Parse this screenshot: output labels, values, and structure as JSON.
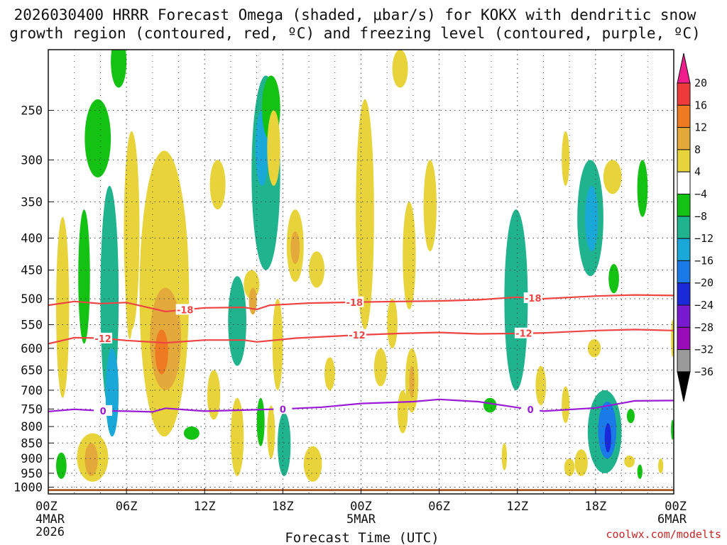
{
  "title": {
    "line1": "2026030400 HRRR Forecast Omega (shaded, μbar/s) for KOKX with dendritic snow",
    "line2": "growth region (contoured, red, ºC) and freezing level (contoured, purple, ºC)"
  },
  "credit": "coolwx.com/modelts",
  "chart_data": {
    "type": "heatmap",
    "title": "2026030400 HRRR Forecast Omega (shaded, μbar/s) for KOKX with dendritic snow growth region (contoured, red, ºC) and freezing level (contoured, purple, ºC)",
    "xlabel": "Forecast Time (UTC)",
    "ylabel": "",
    "x_range_hours": [
      0,
      48
    ],
    "x_ticks": [
      {
        "hour": 0,
        "label": "00Z",
        "sub1": "4MAR",
        "sub2": "2026"
      },
      {
        "hour": 6,
        "label": "06Z",
        "sub1": "",
        "sub2": ""
      },
      {
        "hour": 12,
        "label": "12Z",
        "sub1": "",
        "sub2": ""
      },
      {
        "hour": 18,
        "label": "18Z",
        "sub1": "",
        "sub2": ""
      },
      {
        "hour": 24,
        "label": "00Z",
        "sub1": "5MAR",
        "sub2": ""
      },
      {
        "hour": 30,
        "label": "06Z",
        "sub1": "",
        "sub2": ""
      },
      {
        "hour": 36,
        "label": "12Z",
        "sub1": "",
        "sub2": ""
      },
      {
        "hour": 42,
        "label": "18Z",
        "sub1": "",
        "sub2": ""
      },
      {
        "hour": 48,
        "label": "00Z",
        "sub1": "6MAR",
        "sub2": ""
      }
    ],
    "y_range_hpa": [
      200,
      1025
    ],
    "y_ticks": [
      250,
      300,
      350,
      400,
      450,
      500,
      550,
      600,
      650,
      700,
      750,
      800,
      850,
      900,
      950,
      1000
    ],
    "colorbar": {
      "levels": [
        20,
        16,
        12,
        8,
        4,
        -4,
        -8,
        -12,
        -16,
        -20,
        -24,
        -28,
        -32,
        -36
      ],
      "labels": [
        "20",
        "16",
        "12",
        "8",
        "4",
        "−4",
        "−8",
        "−12",
        "−16",
        "−20",
        "−24",
        "−28",
        "−32",
        "−36"
      ],
      "colors_top_to_bottom": [
        "#ee1c8c",
        "#ee3a3a",
        "#ee7a22",
        "#e3a93a",
        "#e8d43a",
        "#ffffff",
        "#13c213",
        "#1fb38e",
        "#1aa8d8",
        "#1a7ae8",
        "#1a2ad8",
        "#7a1ad0",
        "#9a0cb8",
        "#9a9a9a",
        "#000000"
      ]
    },
    "contours": [
      {
        "name": "dgz-top",
        "label": "-18",
        "color": "#ee4444",
        "points": [
          [
            0,
            512
          ],
          [
            2,
            505
          ],
          [
            4,
            509
          ],
          [
            6,
            507
          ],
          [
            9,
            524
          ],
          [
            12,
            517
          ],
          [
            15,
            516
          ],
          [
            16,
            520
          ],
          [
            17,
            512
          ],
          [
            20,
            508
          ],
          [
            24,
            506
          ],
          [
            27,
            505
          ],
          [
            30,
            504
          ],
          [
            33,
            502
          ],
          [
            36,
            497
          ],
          [
            38,
            500
          ],
          [
            42,
            495
          ],
          [
            45,
            493
          ],
          [
            48,
            494
          ]
        ],
        "label_hours": [
          10.5,
          23.5,
          37.2
        ]
      },
      {
        "name": "dgz-bottom",
        "label": "-12",
        "color": "#ee4444",
        "points": [
          [
            0,
            590
          ],
          [
            2,
            577
          ],
          [
            4,
            578
          ],
          [
            6,
            583
          ],
          [
            9,
            588
          ],
          [
            12,
            582
          ],
          [
            15,
            582
          ],
          [
            16,
            586
          ],
          [
            19,
            578
          ],
          [
            24,
            571
          ],
          [
            27,
            568
          ],
          [
            30,
            566
          ],
          [
            33,
            569
          ],
          [
            36,
            568
          ],
          [
            38,
            567
          ],
          [
            42,
            562
          ],
          [
            45,
            560
          ],
          [
            48,
            562
          ]
        ],
        "label_hours": [
          4.2,
          23.7,
          36.5
        ]
      },
      {
        "name": "freezing-level",
        "label": "0",
        "color": "#9a1ad6",
        "points": [
          [
            0,
            757
          ],
          [
            2,
            751
          ],
          [
            4,
            755
          ],
          [
            6,
            756
          ],
          [
            8,
            758
          ],
          [
            9,
            748
          ],
          [
            12,
            756
          ],
          [
            15,
            753
          ],
          [
            18,
            750
          ],
          [
            21,
            745
          ],
          [
            24,
            735
          ],
          [
            28,
            730
          ],
          [
            30,
            724
          ],
          [
            33,
            730
          ],
          [
            36,
            746
          ],
          [
            38,
            756
          ],
          [
            42,
            747
          ],
          [
            45,
            728
          ],
          [
            48,
            727
          ]
        ],
        "label_hours": [
          4.2,
          18.0,
          37.0
        ]
      }
    ],
    "shaded_regions": [
      {
        "name": "up-0-6",
        "v": 6,
        "hours": [
          0.6,
          1.6
        ],
        "p": [
          370,
          720
        ]
      },
      {
        "name": "dn-1",
        "v": -6,
        "hours": [
          2.3,
          3.2
        ],
        "p": [
          360,
          590
        ]
      },
      {
        "name": "dn-2",
        "v": -6,
        "hours": [
          2.8,
          4.8
        ],
        "p": [
          240,
          320
        ]
      },
      {
        "name": "dn-3",
        "v": -10,
        "hours": [
          4.0,
          5.4
        ],
        "p": [
          330,
          750
        ]
      },
      {
        "name": "dn-4",
        "v": -14,
        "hours": [
          4.4,
          5.4
        ],
        "p": [
          600,
          830
        ]
      },
      {
        "name": "up-0-6b",
        "v": 6,
        "hours": [
          2.2,
          4.6
        ],
        "p": [
          820,
          980
        ]
      },
      {
        "name": "up-0-12",
        "v": 10,
        "hours": [
          2.8,
          3.8
        ],
        "p": [
          850,
          960
        ]
      },
      {
        "name": "dn-5",
        "v": -6,
        "hours": [
          0.6,
          1.4
        ],
        "p": [
          880,
          970
        ]
      },
      {
        "name": "dn-6",
        "v": -6,
        "hours": [
          4.8,
          6.0
        ],
        "p": [
          190,
          230
        ]
      },
      {
        "name": "up-0-7",
        "v": 6,
        "hours": [
          5.9,
          6.6
        ],
        "p": [
          330,
          580
        ]
      },
      {
        "name": "up-1",
        "v": 6,
        "hours": [
          7.0,
          10.8
        ],
        "p": [
          290,
          830
        ]
      },
      {
        "name": "up-2",
        "v": 10,
        "hours": [
          7.8,
          10.2
        ],
        "p": [
          480,
          700
        ]
      },
      {
        "name": "up-3",
        "v": 14,
        "hours": [
          8.2,
          9.2
        ],
        "p": [
          560,
          660
        ]
      },
      {
        "name": "up-4",
        "v": 6,
        "hours": [
          5.8,
          7.0
        ],
        "p": [
          270,
          560
        ]
      },
      {
        "name": "dn-7",
        "v": -6,
        "hours": [
          10.4,
          11.6
        ],
        "p": [
          800,
          840
        ]
      },
      {
        "name": "up-5",
        "v": 6,
        "hours": [
          12.4,
          13.6
        ],
        "p": [
          300,
          360
        ]
      },
      {
        "name": "up-6",
        "v": 6,
        "hours": [
          12.2,
          13.2
        ],
        "p": [
          650,
          780
        ]
      },
      {
        "name": "dn-8",
        "v": -10,
        "hours": [
          13.8,
          15.2
        ],
        "p": [
          460,
          640
        ]
      },
      {
        "name": "up-7",
        "v": 6,
        "hours": [
          15.0,
          16.2
        ],
        "p": [
          450,
          500
        ]
      },
      {
        "name": "up-7b",
        "v": 10,
        "hours": [
          15.4,
          16.0
        ],
        "p": [
          480,
          530
        ]
      },
      {
        "name": "dn-9",
        "v": -8,
        "hours": [
          15.6,
          17.8
        ],
        "p": [
          220,
          450
        ]
      },
      {
        "name": "dn-10",
        "v": -14,
        "hours": [
          15.9,
          16.9
        ],
        "p": [
          250,
          330
        ]
      },
      {
        "name": "dn-11",
        "v": -6,
        "hours": [
          16.4,
          17.8
        ],
        "p": [
          220,
          280
        ]
      },
      {
        "name": "up-8",
        "v": 6,
        "hours": [
          16.8,
          17.8
        ],
        "p": [
          250,
          330
        ]
      },
      {
        "name": "up-9",
        "v": 6,
        "hours": [
          18.3,
          19.6
        ],
        "p": [
          360,
          470
        ]
      },
      {
        "name": "up-10",
        "v": 10,
        "hours": [
          18.6,
          19.3
        ],
        "p": [
          390,
          440
        ]
      },
      {
        "name": "up-11",
        "v": 6,
        "hours": [
          17.2,
          18.0
        ],
        "p": [
          500,
          700
        ]
      },
      {
        "name": "dn-12",
        "v": -10,
        "hours": [
          17.6,
          18.6
        ],
        "p": [
          760,
          960
        ]
      },
      {
        "name": "dn-13",
        "v": -6,
        "hours": [
          16.0,
          16.6
        ],
        "p": [
          720,
          860
        ]
      },
      {
        "name": "up-12",
        "v": 6,
        "hours": [
          16.8,
          17.4
        ],
        "p": [
          740,
          900
        ]
      },
      {
        "name": "up-13",
        "v": 6,
        "hours": [
          14.0,
          15.0
        ],
        "p": [
          720,
          960
        ]
      },
      {
        "name": "up-14",
        "v": 6,
        "hours": [
          19.6,
          21.0
        ],
        "p": [
          860,
          980
        ]
      },
      {
        "name": "up-15",
        "v": 6,
        "hours": [
          20.0,
          21.2
        ],
        "p": [
          420,
          480
        ]
      },
      {
        "name": "up-16",
        "v": 6,
        "hours": [
          21.2,
          22.0
        ],
        "p": [
          620,
          700
        ]
      },
      {
        "name": "up-17",
        "v": 6,
        "hours": [
          23.6,
          25.0
        ],
        "p": [
          240,
          560
        ]
      },
      {
        "name": "up-18",
        "v": 6,
        "hours": [
          26.0,
          26.8
        ],
        "p": [
          500,
          600
        ]
      },
      {
        "name": "up-19",
        "v": 6,
        "hours": [
          25.0,
          26.0
        ],
        "p": [
          600,
          690
        ]
      },
      {
        "name": "up-20",
        "v": 6,
        "hours": [
          27.2,
          28.2
        ],
        "p": [
          350,
          520
        ]
      },
      {
        "name": "up-21",
        "v": 6,
        "hours": [
          28.8,
          29.8
        ],
        "p": [
          300,
          420
        ]
      },
      {
        "name": "up-22",
        "v": 6,
        "hours": [
          26.8,
          27.6
        ],
        "p": [
          700,
          820
        ]
      },
      {
        "name": "up-23",
        "v": 6,
        "hours": [
          27.4,
          28.4
        ],
        "p": [
          600,
          760
        ]
      },
      {
        "name": "up-23b",
        "v": 10,
        "hours": [
          27.7,
          28.1
        ],
        "p": [
          640,
          720
        ]
      },
      {
        "name": "up-24",
        "v": 6,
        "hours": [
          26.4,
          27.6
        ],
        "p": [
          200,
          230
        ]
      },
      {
        "name": "up-25",
        "v": 6,
        "hours": [
          34.8,
          35.2
        ],
        "p": [
          850,
          940
        ]
      },
      {
        "name": "dn-14",
        "v": -8,
        "hours": [
          35.0,
          36.8
        ],
        "p": [
          360,
          700
        ]
      },
      {
        "name": "dn-15",
        "v": -6,
        "hours": [
          33.4,
          34.4
        ],
        "p": [
          720,
          760
        ]
      },
      {
        "name": "up-26",
        "v": 6,
        "hours": [
          37.4,
          38.2
        ],
        "p": [
          640,
          740
        ]
      },
      {
        "name": "up-27",
        "v": 6,
        "hours": [
          39.4,
          40.0
        ],
        "p": [
          270,
          330
        ]
      },
      {
        "name": "dn-16",
        "v": -8,
        "hours": [
          40.6,
          42.6
        ],
        "p": [
          300,
          460
        ]
      },
      {
        "name": "dn-17",
        "v": -14,
        "hours": [
          41.2,
          42.2
        ],
        "p": [
          330,
          420
        ]
      },
      {
        "name": "up-28",
        "v": 6,
        "hours": [
          41.4,
          42.4
        ],
        "p": [
          580,
          620
        ]
      },
      {
        "name": "up-29",
        "v": 6,
        "hours": [
          42.6,
          44.0
        ],
        "p": [
          300,
          340
        ]
      },
      {
        "name": "dn-18",
        "v": -6,
        "hours": [
          43.0,
          43.8
        ],
        "p": [
          440,
          490
        ]
      },
      {
        "name": "dn-19",
        "v": -6,
        "hours": [
          45.2,
          46.0
        ],
        "p": [
          300,
          370
        ]
      },
      {
        "name": "dn-20",
        "v": -10,
        "hours": [
          41.4,
          44.0
        ],
        "p": [
          700,
          950
        ]
      },
      {
        "name": "dn-21",
        "v": -16,
        "hours": [
          42.2,
          43.6
        ],
        "p": [
          730,
          900
        ]
      },
      {
        "name": "dn-22",
        "v": -22,
        "hours": [
          42.7,
          43.2
        ],
        "p": [
          790,
          880
        ]
      },
      {
        "name": "up-30",
        "v": 6,
        "hours": [
          40.4,
          41.4
        ],
        "p": [
          870,
          960
        ]
      },
      {
        "name": "up-31",
        "v": 6,
        "hours": [
          44.2,
          45.0
        ],
        "p": [
          890,
          930
        ]
      },
      {
        "name": "up-32",
        "v": 6,
        "hours": [
          39.4,
          40.0
        ],
        "p": [
          690,
          790
        ]
      },
      {
        "name": "up-33",
        "v": 6,
        "hours": [
          39.6,
          40.4
        ],
        "p": [
          900,
          960
        ]
      },
      {
        "name": "dn-23",
        "v": -6,
        "hours": [
          44.4,
          45.0
        ],
        "p": [
          750,
          790
        ]
      },
      {
        "name": "up-34",
        "v": 6,
        "hours": [
          47.8,
          48.0
        ],
        "p": [
          540,
          620
        ]
      },
      {
        "name": "dn-24",
        "v": -6,
        "hours": [
          45.2,
          45.6
        ],
        "p": [
          920,
          970
        ]
      },
      {
        "name": "dn-25",
        "v": -6,
        "hours": [
          47.8,
          48.0
        ],
        "p": [
          780,
          840
        ]
      },
      {
        "name": "up-35",
        "v": 6,
        "hours": [
          46.8,
          47.2
        ],
        "p": [
          900,
          950
        ]
      }
    ],
    "terrain_color": "#a8582a"
  }
}
